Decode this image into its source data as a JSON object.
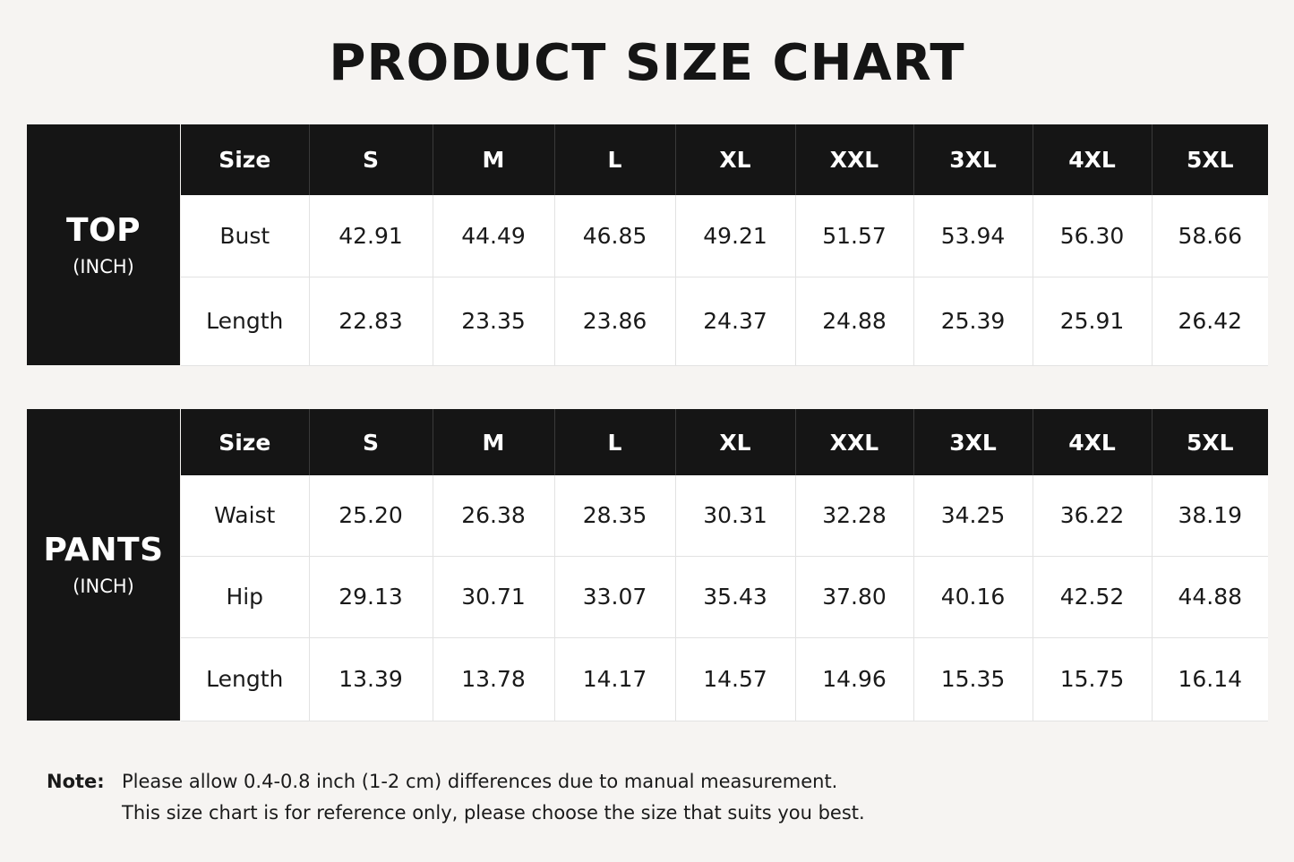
{
  "title": "PRODUCT SIZE CHART",
  "chart_data": [
    {
      "type": "table",
      "name": "TOP",
      "unit": "(INCH)",
      "header_label": "Size",
      "sizes": [
        "S",
        "M",
        "L",
        "XL",
        "XXL",
        "3XL",
        "4XL",
        "5XL"
      ],
      "rows": [
        {
          "label": "Bust",
          "values": [
            "42.91",
            "44.49",
            "46.85",
            "49.21",
            "51.57",
            "53.94",
            "56.30",
            "58.66"
          ]
        },
        {
          "label": "Length",
          "values": [
            "22.83",
            "23.35",
            "23.86",
            "24.37",
            "24.88",
            "25.39",
            "25.91",
            "26.42"
          ]
        }
      ]
    },
    {
      "type": "table",
      "name": "PANTS",
      "unit": "(INCH)",
      "header_label": "Size",
      "sizes": [
        "S",
        "M",
        "L",
        "XL",
        "XXL",
        "3XL",
        "4XL",
        "5XL"
      ],
      "rows": [
        {
          "label": "Waist",
          "values": [
            "25.20",
            "26.38",
            "28.35",
            "30.31",
            "32.28",
            "34.25",
            "36.22",
            "38.19"
          ]
        },
        {
          "label": "Hip",
          "values": [
            "29.13",
            "30.71",
            "33.07",
            "35.43",
            "37.80",
            "40.16",
            "42.52",
            "44.88"
          ]
        },
        {
          "label": "Length",
          "values": [
            "13.39",
            "13.78",
            "14.17",
            "14.57",
            "14.96",
            "15.35",
            "15.75",
            "16.14"
          ]
        }
      ]
    }
  ],
  "note": {
    "label": "Note:",
    "lines": [
      "Please allow 0.4-0.8 inch (1-2 cm) differences due to manual measurement.",
      "This size chart is for reference only, please choose the size that suits you best."
    ]
  }
}
